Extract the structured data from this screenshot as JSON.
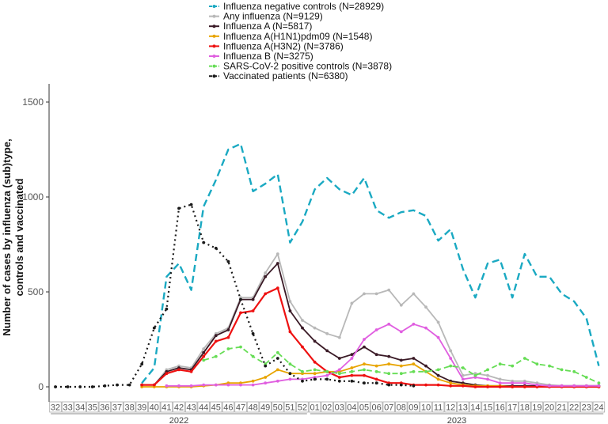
{
  "chart_data": {
    "type": "line",
    "ylabel_lines": [
      "Number of cases by influenza (sub)type,",
      "controls and vaccinated"
    ],
    "ylim": [
      0,
      1600
    ],
    "yticks": [
      0,
      500,
      1000,
      1500
    ],
    "grid": false,
    "legend_position": "top",
    "weeks": [
      "32",
      "33",
      "34",
      "35",
      "36",
      "37",
      "38",
      "39",
      "40",
      "41",
      "42",
      "43",
      "44",
      "45",
      "46",
      "47",
      "48",
      "49",
      "50",
      "51",
      "52",
      "01",
      "02",
      "03",
      "04",
      "05",
      "06",
      "07",
      "08",
      "09",
      "10",
      "11",
      "12",
      "13",
      "14",
      "15",
      "16",
      "17",
      "18",
      "19",
      "20",
      "21",
      "22",
      "23",
      "24"
    ],
    "year_groups": [
      {
        "label": "2022",
        "from": 0,
        "to": 20
      },
      {
        "label": "2023",
        "from": 21,
        "to": 44
      }
    ],
    "series": [
      {
        "name": "Influenza negative controls (N=28929)",
        "color": "#1aa9c2",
        "dash": "9,5",
        "width": 2.4,
        "marker": "none",
        "values": [
          null,
          null,
          null,
          null,
          null,
          null,
          null,
          20,
          100,
          580,
          650,
          510,
          950,
          1090,
          1250,
          1280,
          1030,
          1070,
          1120,
          760,
          870,
          1040,
          1100,
          1040,
          1010,
          1100,
          930,
          890,
          920,
          930,
          900,
          770,
          830,
          620,
          470,
          650,
          670,
          470,
          700,
          580,
          580,
          490,
          450,
          360,
          110
        ]
      },
      {
        "name": "Any influenza (N=9129)",
        "color": "#b8b8b8",
        "dash": "",
        "width": 1.8,
        "marker": "dot",
        "values": [
          null,
          null,
          null,
          null,
          null,
          null,
          null,
          10,
          10,
          90,
          110,
          100,
          200,
          280,
          310,
          470,
          470,
          600,
          700,
          450,
          350,
          310,
          280,
          260,
          440,
          490,
          490,
          510,
          430,
          490,
          420,
          340,
          190,
          60,
          70,
          60,
          40,
          30,
          30,
          20,
          10,
          5,
          5,
          5,
          5
        ]
      },
      {
        "name": "Influenza A (N=5817)",
        "color": "#3a1a26",
        "dash": "",
        "width": 1.8,
        "marker": "dot",
        "values": [
          null,
          null,
          null,
          null,
          null,
          null,
          null,
          10,
          10,
          80,
          100,
          90,
          180,
          270,
          300,
          460,
          460,
          580,
          650,
          400,
          310,
          240,
          190,
          150,
          170,
          210,
          170,
          160,
          140,
          150,
          110,
          60,
          30,
          20,
          10,
          5,
          5,
          5,
          5,
          5,
          5,
          5,
          5,
          5,
          5
        ]
      },
      {
        "name": "Influenza A(H1N1)pdm09 (N=1548)",
        "color": "#e8a400",
        "dash": "",
        "width": 1.8,
        "marker": "dot",
        "values": [
          null,
          null,
          null,
          null,
          null,
          null,
          null,
          0,
          0,
          0,
          0,
          0,
          5,
          10,
          20,
          20,
          30,
          50,
          90,
          70,
          70,
          70,
          80,
          80,
          100,
          120,
          110,
          120,
          110,
          120,
          80,
          40,
          20,
          10,
          5,
          5,
          5,
          0,
          0,
          0,
          0,
          0,
          0,
          0,
          0
        ]
      },
      {
        "name": "Influenza A(H3N2) (N=3786)",
        "color": "#ee1111",
        "dash": "",
        "width": 2.2,
        "marker": "dot",
        "values": [
          null,
          null,
          null,
          null,
          null,
          null,
          null,
          10,
          10,
          70,
          90,
          80,
          160,
          240,
          260,
          390,
          400,
          490,
          520,
          290,
          210,
          130,
          80,
          50,
          60,
          60,
          40,
          20,
          20,
          10,
          10,
          10,
          5,
          5,
          0,
          0,
          0,
          0,
          0,
          0,
          0,
          0,
          0,
          0,
          0
        ]
      },
      {
        "name": "Influenza B (N=3275)",
        "color": "#e05fe0",
        "dash": "",
        "width": 1.8,
        "marker": "dot",
        "values": [
          null,
          null,
          null,
          null,
          null,
          null,
          null,
          null,
          null,
          5,
          5,
          5,
          10,
          10,
          10,
          10,
          10,
          20,
          30,
          40,
          40,
          50,
          60,
          90,
          150,
          250,
          300,
          330,
          290,
          330,
          310,
          260,
          150,
          40,
          50,
          40,
          20,
          20,
          20,
          10,
          5,
          5,
          5,
          5,
          5
        ]
      },
      {
        "name": "SARS-CoV-2 positive controls (N=3878)",
        "color": "#66dd55",
        "dash": "7,4",
        "width": 1.8,
        "marker": "dot",
        "values": [
          null,
          null,
          null,
          null,
          null,
          null,
          null,
          null,
          null,
          null,
          null,
          null,
          140,
          160,
          200,
          210,
          160,
          120,
          180,
          120,
          80,
          90,
          80,
          70,
          80,
          90,
          80,
          70,
          70,
          80,
          80,
          90,
          110,
          100,
          60,
          90,
          120,
          110,
          150,
          120,
          110,
          90,
          80,
          50,
          20
        ]
      },
      {
        "name": "Vaccinated patients (N=6380)",
        "color": "#1a1a1a",
        "dash": "2,4",
        "width": 2.2,
        "marker": "dot",
        "values": [
          0,
          0,
          0,
          0,
          5,
          10,
          10,
          120,
          310,
          410,
          940,
          960,
          760,
          730,
          660,
          460,
          280,
          110,
          150,
          70,
          30,
          40,
          40,
          30,
          30,
          20,
          20,
          10,
          10,
          5,
          null,
          null,
          null,
          null,
          null,
          null,
          null,
          null,
          null,
          null,
          null,
          null,
          null,
          null,
          null
        ]
      }
    ]
  }
}
